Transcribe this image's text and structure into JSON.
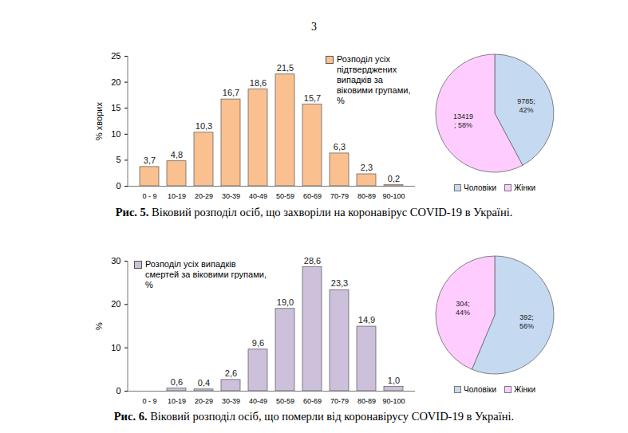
{
  "page_number": "3",
  "captions": [
    {
      "label": "Рис. 5.",
      "text": "Віковий розподіл осіб, що захворіли на коронавірус COVID-19 в Україні."
    },
    {
      "label": "Рис. 6.",
      "text": "Віковий розподіл осіб, що померли від коронавірусу COVID-19 в Україні."
    }
  ],
  "chart_data": [
    {
      "type": "bar",
      "categories": [
        "0 - 9",
        "10-19",
        "20-29",
        "30-39",
        "40-49",
        "50-59",
        "60-69",
        "70-79",
        "80-89",
        "90-100"
      ],
      "series": [
        {
          "name": "Розподіл усіх підтверджених випадків за віковими групами, %",
          "color": "#fac090",
          "values": [
            3.7,
            4.8,
            10.3,
            16.7,
            18.6,
            21.5,
            15.7,
            6.3,
            2.3,
            0.2
          ],
          "value_labels": [
            "3,7",
            "4,8",
            "10,3",
            "16,7",
            "18,6",
            "21,5",
            "15,7",
            "6,3",
            "2,3",
            "0,2"
          ]
        }
      ],
      "y_label": "% хворих",
      "ylim": [
        0,
        25
      ],
      "yticks": [
        0,
        5,
        10,
        15,
        20,
        25
      ],
      "grid": false,
      "legend": "top-right",
      "data_labels": true
    },
    {
      "type": "pie",
      "categories": [
        "Чоловіки",
        "Жінки"
      ],
      "values": [
        9785,
        13419
      ],
      "value_labels": [
        "9785;\n42%",
        "13419\n; 58%"
      ],
      "colors": [
        "#c5d9f1",
        "#ffccff"
      ],
      "legend": "bottom",
      "data_labels": true
    },
    {
      "type": "bar",
      "categories": [
        "0 - 9",
        "10-19",
        "20-29",
        "30-39",
        "40-49",
        "50-59",
        "60-69",
        "70-79",
        "80-89",
        "90-100"
      ],
      "series": [
        {
          "name": "Розподіл усіх випадків смертей за віковими групами, %",
          "color": "#ccc0da",
          "values": [
            null,
            0.6,
            0.4,
            2.6,
            9.6,
            19.0,
            28.6,
            23.3,
            14.9,
            1.0
          ],
          "value_labels": [
            null,
            "0,6",
            "0,4",
            "2,6",
            "9,6",
            "19,0",
            "28,6",
            "23,3",
            "14,9",
            "1,0"
          ]
        }
      ],
      "y_label": "%",
      "ylim": [
        0,
        30
      ],
      "yticks": [
        0,
        10,
        20,
        30
      ],
      "grid": false,
      "legend": "top-left",
      "data_labels": true
    },
    {
      "type": "pie",
      "categories": [
        "Чоловіки",
        "Жінки"
      ],
      "values": [
        392,
        304
      ],
      "value_labels": [
        "392;\n56%",
        "304;\n44%"
      ],
      "colors": [
        "#c5d9f1",
        "#ffccff"
      ],
      "legend": "bottom",
      "data_labels": true
    }
  ]
}
